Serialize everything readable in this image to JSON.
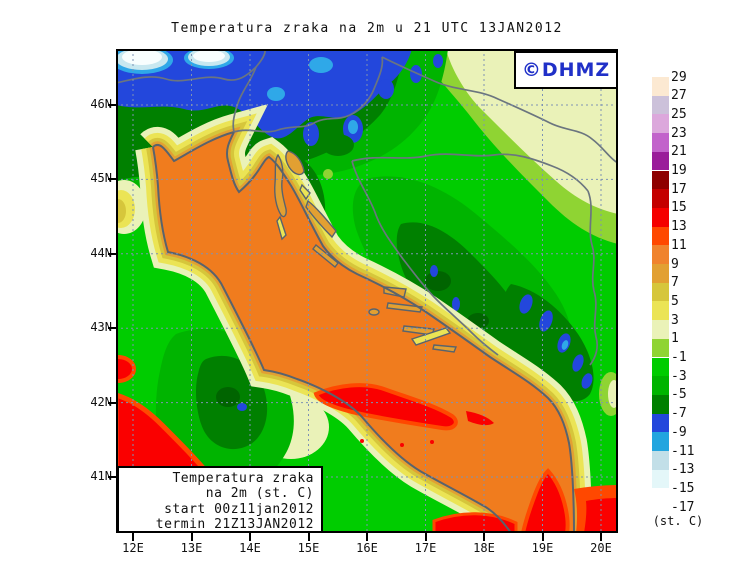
{
  "title": {
    "text": "Temperatura zraka na 2m u 21 UTC 13JAN2012"
  },
  "logo": {
    "text": "©DHMZ",
    "color": "#2030C8"
  },
  "axes": {
    "lat": [
      "46N",
      "45N",
      "44N",
      "43N",
      "42N",
      "41N"
    ],
    "lon": [
      "12E",
      "13E",
      "14E",
      "15E",
      "16E",
      "17E",
      "18E",
      "19E",
      "20E"
    ]
  },
  "legend": {
    "unit": "(st. C)",
    "labels": [
      "29",
      "27",
      "25",
      "23",
      "21",
      "19",
      "17",
      "15",
      "13",
      "11",
      "9",
      "7",
      "5",
      "3",
      "1",
      "-1",
      "-3",
      "-5",
      "-7",
      "-9",
      "-11",
      "-13",
      "-15",
      "-17"
    ],
    "colors": [
      "#FCE9D2",
      "#CCC1DA",
      "#DCA8DC",
      "#C263CB",
      "#9A1C9A",
      "#8E0000",
      "#C40000",
      "#F50000",
      "#FF4800",
      "#F0832D",
      "#E2A032",
      "#D6C63B",
      "#EBE455",
      "#EAF2B8",
      "#8FD433",
      "#00CC00",
      "#00B400",
      "#008000",
      "#2347DC",
      "#22A5DF",
      "#C2DFE8",
      "#E4F7F9",
      "#FFFFFF"
    ]
  },
  "info_box": {
    "lines": [
      "Temperatura zraka",
      "na 2m (st. C)",
      "start 00z11jan2012",
      "termin 21Z13JAN2012"
    ]
  }
}
